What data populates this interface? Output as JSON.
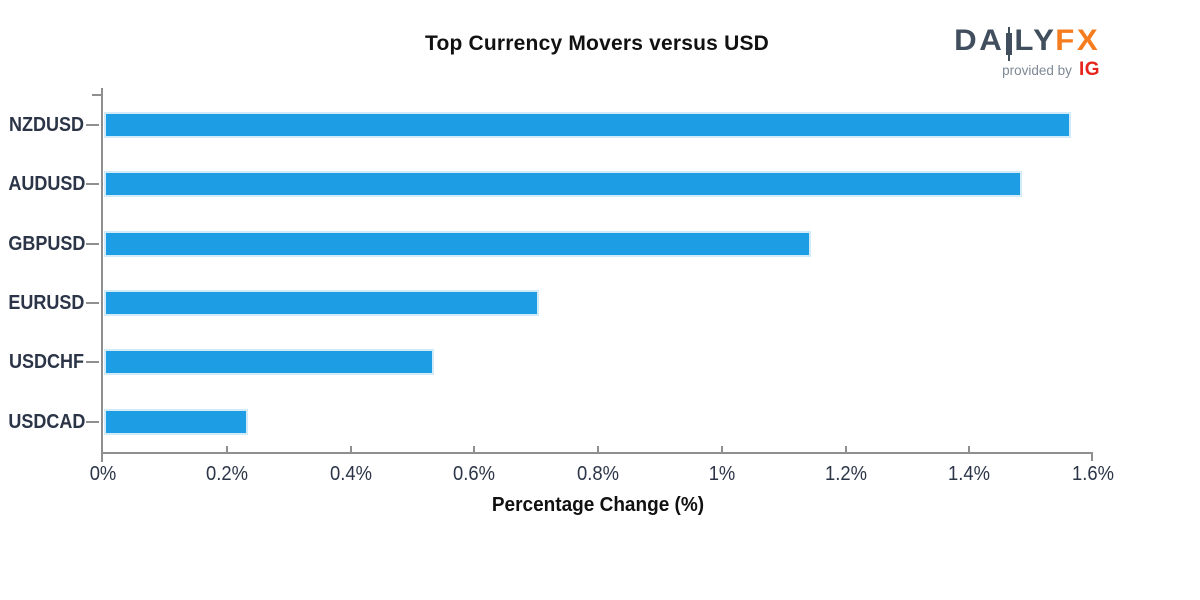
{
  "header": {
    "title": "Top Currency Movers versus USD",
    "brand": {
      "da": "DA",
      "ly": "LY",
      "fx": "FX",
      "provided_by": "provided by",
      "ig": "IG"
    }
  },
  "chart_data": {
    "type": "bar",
    "orientation": "horizontal",
    "title": "Top Currency Movers versus USD",
    "categories": [
      "NZDUSD",
      "AUDUSD",
      "GBPUSD",
      "EURUSD",
      "USDCHF",
      "USDCAD"
    ],
    "values": [
      1.56,
      1.48,
      1.14,
      0.7,
      0.53,
      0.23
    ],
    "unit": "%",
    "xlabel": "Percentage Change (%)",
    "ylabel": "",
    "xlim": [
      0,
      1.6
    ],
    "xtick_values": [
      0,
      0.2,
      0.4,
      0.6,
      0.8,
      1.0,
      1.2,
      1.4,
      1.6
    ],
    "xtick_labels": [
      "0%",
      "0.2%",
      "0.4%",
      "0.6%",
      "0.8%",
      "1%",
      "1.2%",
      "1.4%",
      "1.6%"
    ],
    "grid": false,
    "legend": false,
    "bar_color": "#1d9de3",
    "bar_border_color": "#d3eaf9"
  },
  "colors": {
    "axis": "#8f8f8f",
    "tick_label": "#2b3547",
    "category_label": "#2b3547",
    "title": "#111111",
    "brand_dark": "#414e5e",
    "brand_orange": "#f57c1f",
    "provided_by_gray": "#7e8995",
    "ig_red": "#e6251c"
  }
}
